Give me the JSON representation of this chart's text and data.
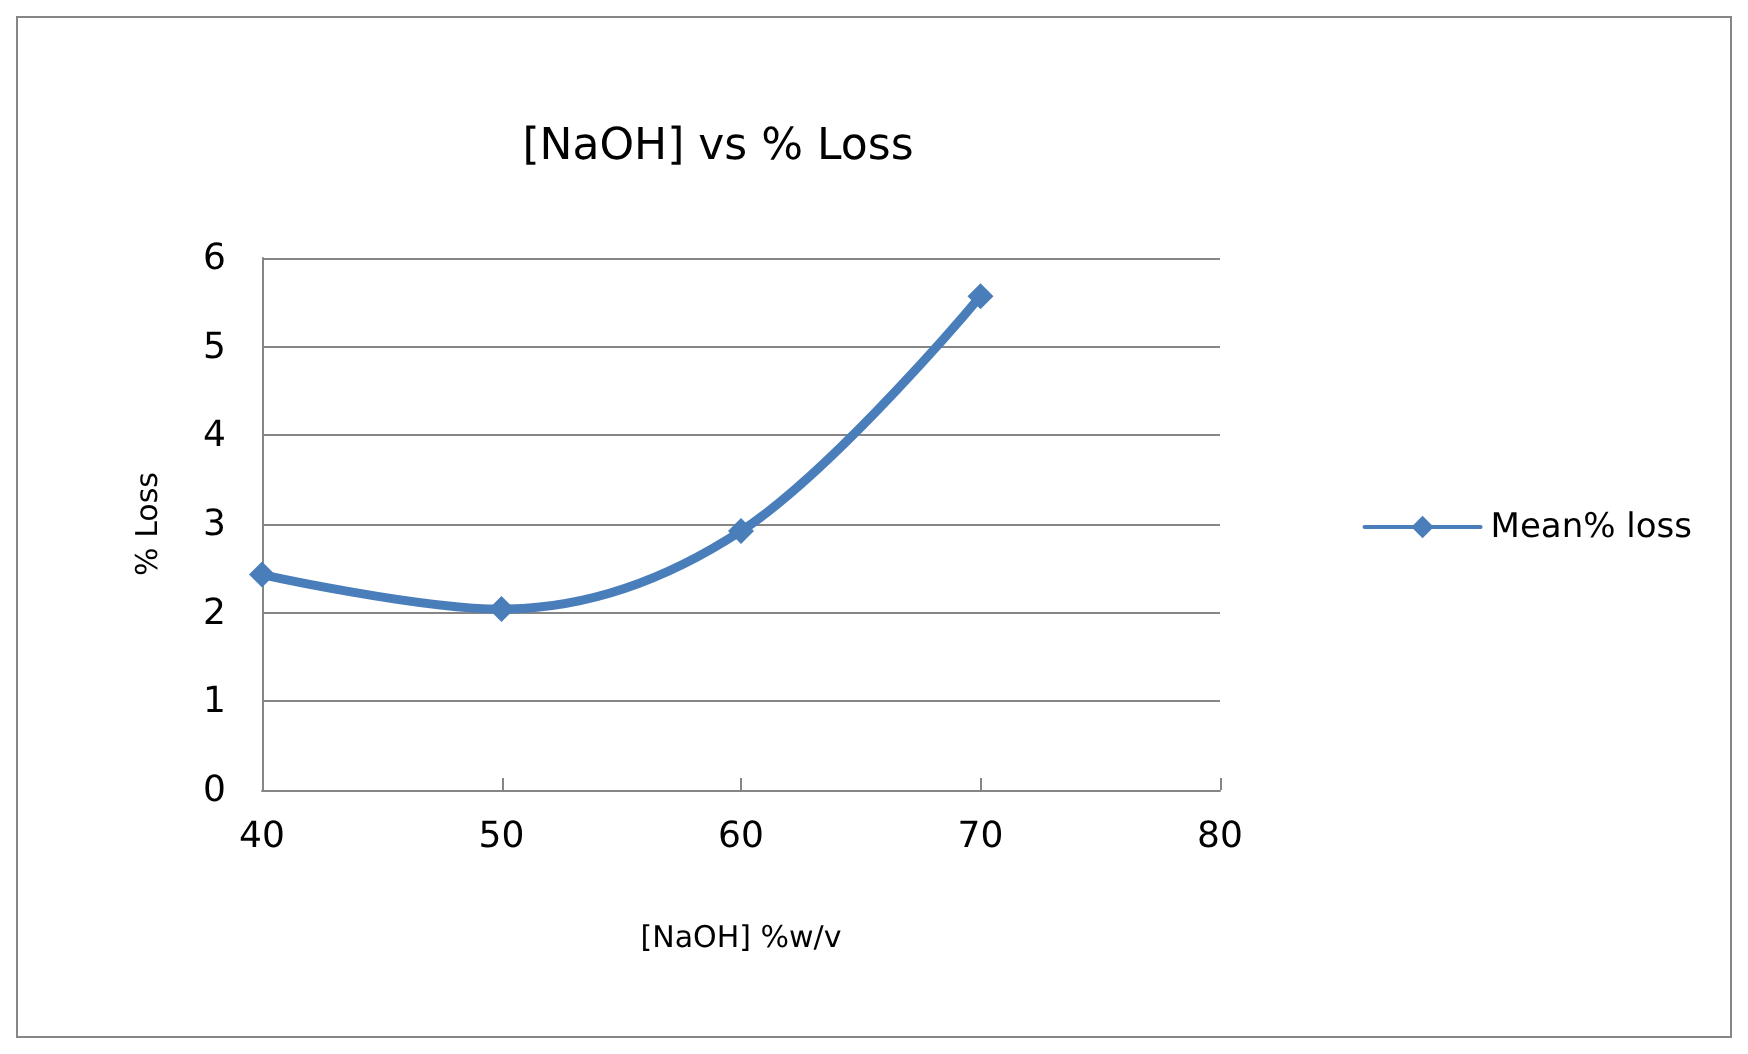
{
  "chart_data": {
    "type": "line",
    "title": "[NaOH] vs % Loss",
    "xlabel": "[NaOH] %w/v",
    "ylabel": "% Loss",
    "x": [
      40,
      50,
      60,
      70
    ],
    "series": [
      {
        "name": "Mean% loss",
        "color": "#4a7ebb",
        "values": [
          2.43,
          2.04,
          2.92,
          5.57
        ]
      }
    ],
    "xlim": [
      40,
      80
    ],
    "xticks": [
      40,
      50,
      60,
      70,
      80
    ],
    "ylim": [
      0,
      6
    ],
    "yticks": [
      0,
      1,
      2,
      3,
      4,
      5,
      6
    ],
    "grid": "y",
    "legend": "right",
    "marker": "diamond",
    "line_style": "solid"
  }
}
